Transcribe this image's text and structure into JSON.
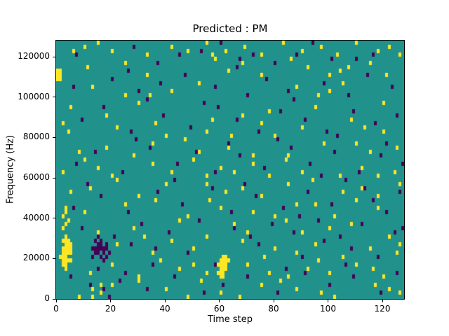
{
  "figure": {
    "title": "Predicted : PM",
    "xlabel": "Time step",
    "ylabel": "Frequency (Hz)"
  },
  "chart_data": {
    "type": "heatmap",
    "title": "Predicted : PM",
    "xlabel": "Time step",
    "ylabel": "Frequency (Hz)",
    "x_range": [
      0,
      128
    ],
    "y_range": [
      0,
      128000
    ],
    "x_ticks": [
      0,
      20,
      40,
      60,
      80,
      100,
      120
    ],
    "y_ticks": [
      0,
      20000,
      40000,
      60000,
      80000,
      100000,
      120000
    ],
    "grid": false,
    "legend": "none",
    "cell_size": {
      "time": 1,
      "freq_hz": 2000
    },
    "colors": {
      "background_mid": "#21918c",
      "high": "#fde725",
      "low": "#440154"
    },
    "note": "cells are [time_step, freq_bin]; freq_hz = freq_bin * 2000; high = yellow cells, low = dark purple cells, all other cells are mid teal",
    "cells_high": [
      [
        1,
        10
      ],
      [
        2,
        8
      ],
      [
        2,
        9
      ],
      [
        2,
        10
      ],
      [
        2,
        11
      ],
      [
        2,
        12
      ],
      [
        2,
        14
      ],
      [
        3,
        8
      ],
      [
        3,
        9
      ],
      [
        3,
        10
      ],
      [
        3,
        11
      ],
      [
        3,
        12
      ],
      [
        3,
        13
      ],
      [
        3,
        14
      ],
      [
        3,
        15
      ],
      [
        4,
        9
      ],
      [
        4,
        11
      ],
      [
        4,
        12
      ],
      [
        4,
        13
      ],
      [
        4,
        14
      ],
      [
        5,
        9
      ],
      [
        5,
        11
      ],
      [
        5,
        12
      ],
      [
        5,
        13
      ],
      [
        2,
        17
      ],
      [
        3,
        18
      ],
      [
        2,
        20
      ],
      [
        4,
        19
      ],
      [
        3,
        21
      ],
      [
        0,
        54
      ],
      [
        0,
        55
      ],
      [
        0,
        56
      ],
      [
        1,
        54
      ],
      [
        1,
        55
      ],
      [
        1,
        56
      ],
      [
        59,
        6
      ],
      [
        59,
        8
      ],
      [
        60,
        5
      ],
      [
        60,
        6
      ],
      [
        60,
        7
      ],
      [
        60,
        8
      ],
      [
        60,
        9
      ],
      [
        61,
        5
      ],
      [
        61,
        6
      ],
      [
        61,
        7
      ],
      [
        61,
        8
      ],
      [
        61,
        9
      ],
      [
        61,
        10
      ],
      [
        62,
        7
      ],
      [
        62,
        8
      ],
      [
        62,
        9
      ],
      [
        62,
        10
      ],
      [
        63,
        9
      ],
      [
        6,
        61
      ],
      [
        10,
        62
      ],
      [
        15,
        63
      ],
      [
        20,
        61
      ],
      [
        33,
        60
      ],
      [
        42,
        62
      ],
      [
        48,
        61
      ],
      [
        55,
        63
      ],
      [
        57,
        60
      ],
      [
        62,
        61
      ],
      [
        69,
        62
      ],
      [
        75,
        60
      ],
      [
        83,
        63
      ],
      [
        90,
        61
      ],
      [
        97,
        62
      ],
      [
        103,
        60
      ],
      [
        110,
        63
      ],
      [
        118,
        61
      ],
      [
        122,
        62
      ],
      [
        126,
        60
      ],
      [
        11,
        57
      ],
      [
        25,
        58
      ],
      [
        33,
        55
      ],
      [
        58,
        59
      ],
      [
        63,
        56
      ],
      [
        68,
        58
      ],
      [
        75,
        55
      ],
      [
        86,
        59
      ],
      [
        92,
        57
      ],
      [
        100,
        55
      ],
      [
        104,
        56
      ],
      [
        107,
        57
      ],
      [
        115,
        58
      ],
      [
        121,
        55
      ],
      [
        13,
        52
      ],
      [
        25,
        50
      ],
      [
        34,
        50
      ],
      [
        42,
        51
      ],
      [
        52,
        53
      ],
      [
        88,
        52
      ],
      [
        96,
        50
      ],
      [
        100,
        51
      ],
      [
        105,
        53
      ],
      [
        5,
        47
      ],
      [
        18,
        45
      ],
      [
        30,
        48
      ],
      [
        57,
        44
      ],
      [
        68,
        45
      ],
      [
        78,
        46
      ],
      [
        95,
        47
      ],
      [
        108,
        44
      ],
      [
        120,
        48
      ],
      [
        2,
        43
      ],
      [
        4,
        41
      ],
      [
        22,
        42
      ],
      [
        36,
        43
      ],
      [
        40,
        40
      ],
      [
        55,
        41
      ],
      [
        64,
        40
      ],
      [
        75,
        43
      ],
      [
        80,
        40
      ],
      [
        90,
        42
      ],
      [
        113,
        42
      ],
      [
        120,
        41
      ],
      [
        8,
        36
      ],
      [
        18,
        37
      ],
      [
        28,
        35
      ],
      [
        35,
        38
      ],
      [
        47,
        39
      ],
      [
        52,
        36
      ],
      [
        63,
        37
      ],
      [
        72,
        35
      ],
      [
        85,
        35
      ],
      [
        98,
        38
      ],
      [
        110,
        38
      ],
      [
        115,
        36
      ],
      [
        125,
        37
      ],
      [
        2,
        31
      ],
      [
        10,
        34
      ],
      [
        15,
        32
      ],
      [
        20,
        30
      ],
      [
        35,
        33
      ],
      [
        42,
        31
      ],
      [
        50,
        34
      ],
      [
        55,
        30
      ],
      [
        60,
        32
      ],
      [
        65,
        31
      ],
      [
        72,
        33
      ],
      [
        78,
        30
      ],
      [
        84,
        34
      ],
      [
        90,
        31
      ],
      [
        104,
        30
      ],
      [
        112,
        32
      ],
      [
        118,
        30
      ],
      [
        124,
        31
      ],
      [
        5,
        26
      ],
      [
        12,
        27
      ],
      [
        22,
        29
      ],
      [
        30,
        25
      ],
      [
        40,
        28
      ],
      [
        55,
        28
      ],
      [
        62,
        26
      ],
      [
        68,
        27
      ],
      [
        75,
        25
      ],
      [
        85,
        28
      ],
      [
        94,
        29
      ],
      [
        105,
        26
      ],
      [
        112,
        27
      ],
      [
        118,
        25
      ],
      [
        126,
        28
      ],
      [
        3,
        22
      ],
      [
        10,
        21
      ],
      [
        25,
        23
      ],
      [
        36,
        24
      ],
      [
        48,
        20
      ],
      [
        56,
        24
      ],
      [
        60,
        22
      ],
      [
        72,
        21
      ],
      [
        80,
        20
      ],
      [
        88,
        23
      ],
      [
        95,
        23
      ],
      [
        102,
        20
      ],
      [
        110,
        24
      ],
      [
        118,
        22
      ],
      [
        15,
        16
      ],
      [
        28,
        17
      ],
      [
        32,
        15
      ],
      [
        45,
        19
      ],
      [
        55,
        15
      ],
      [
        65,
        18
      ],
      [
        70,
        16
      ],
      [
        84,
        19
      ],
      [
        90,
        16
      ],
      [
        100,
        17
      ],
      [
        108,
        18
      ],
      [
        122,
        15
      ],
      [
        18,
        12
      ],
      [
        22,
        13
      ],
      [
        35,
        11
      ],
      [
        42,
        14
      ],
      [
        50,
        12
      ],
      [
        68,
        14
      ],
      [
        76,
        10
      ],
      [
        80,
        12
      ],
      [
        88,
        11
      ],
      [
        95,
        13
      ],
      [
        105,
        10
      ],
      [
        115,
        12
      ],
      [
        125,
        11
      ],
      [
        126,
        13
      ],
      [
        3,
        7
      ],
      [
        12,
        6
      ],
      [
        20,
        8
      ],
      [
        30,
        5
      ],
      [
        38,
        9
      ],
      [
        45,
        7
      ],
      [
        50,
        8
      ],
      [
        55,
        6
      ],
      [
        70,
        8
      ],
      [
        78,
        6
      ],
      [
        85,
        5
      ],
      [
        92,
        7
      ],
      [
        96,
        9
      ],
      [
        100,
        6
      ],
      [
        110,
        8
      ],
      [
        116,
        7
      ],
      [
        120,
        5
      ],
      [
        8,
        0
      ],
      [
        13,
        0
      ],
      [
        13,
        2
      ],
      [
        16,
        1
      ],
      [
        16,
        3
      ],
      [
        20,
        3
      ],
      [
        30,
        4
      ],
      [
        40,
        2
      ],
      [
        48,
        0
      ],
      [
        53,
        4
      ],
      [
        60,
        1
      ],
      [
        67,
        0
      ],
      [
        75,
        3
      ],
      [
        82,
        4
      ],
      [
        88,
        2
      ],
      [
        97,
        1
      ],
      [
        102,
        0
      ],
      [
        117,
        3
      ],
      [
        122,
        2
      ],
      [
        126,
        1
      ]
    ],
    "cells_low": [
      [
        13,
        10
      ],
      [
        13,
        12
      ],
      [
        14,
        11
      ],
      [
        14,
        12
      ],
      [
        14,
        14
      ],
      [
        15,
        11
      ],
      [
        15,
        12
      ],
      [
        15,
        13
      ],
      [
        15,
        15
      ],
      [
        16,
        10
      ],
      [
        16,
        12
      ],
      [
        16,
        13
      ],
      [
        16,
        14
      ],
      [
        17,
        9
      ],
      [
        17,
        11
      ],
      [
        17,
        12
      ],
      [
        18,
        10
      ],
      [
        18,
        12
      ],
      [
        18,
        13
      ],
      [
        19,
        11
      ],
      [
        7,
        60
      ],
      [
        28,
        62
      ],
      [
        37,
        58
      ],
      [
        45,
        60
      ],
      [
        53,
        61
      ],
      [
        60,
        63
      ],
      [
        67,
        59
      ],
      [
        72,
        60
      ],
      [
        80,
        58
      ],
      [
        88,
        60
      ],
      [
        94,
        63
      ],
      [
        101,
        59
      ],
      [
        110,
        59
      ],
      [
        116,
        60
      ],
      [
        6,
        52
      ],
      [
        20,
        54
      ],
      [
        26,
        56
      ],
      [
        30,
        51
      ],
      [
        38,
        53
      ],
      [
        47,
        55
      ],
      [
        58,
        52
      ],
      [
        66,
        57
      ],
      [
        70,
        50
      ],
      [
        77,
        54
      ],
      [
        85,
        51
      ],
      [
        98,
        53
      ],
      [
        107,
        50
      ],
      [
        114,
        55
      ],
      [
        123,
        52
      ],
      [
        9,
        44
      ],
      [
        17,
        47
      ],
      [
        27,
        41
      ],
      [
        33,
        49
      ],
      [
        39,
        45
      ],
      [
        49,
        42
      ],
      [
        54,
        48
      ],
      [
        59,
        47
      ],
      [
        66,
        44
      ],
      [
        74,
        41
      ],
      [
        82,
        46
      ],
      [
        87,
        49
      ],
      [
        91,
        44
      ],
      [
        99,
        41
      ],
      [
        103,
        40
      ],
      [
        109,
        46
      ],
      [
        117,
        43
      ],
      [
        125,
        45
      ],
      [
        7,
        33
      ],
      [
        14,
        36
      ],
      [
        24,
        31
      ],
      [
        29,
        39
      ],
      [
        34,
        37
      ],
      [
        44,
        33
      ],
      [
        51,
        36
      ],
      [
        58,
        31
      ],
      [
        63,
        38
      ],
      [
        67,
        35
      ],
      [
        76,
        32
      ],
      [
        81,
        39
      ],
      [
        86,
        37
      ],
      [
        93,
        33
      ],
      [
        97,
        30
      ],
      [
        102,
        36
      ],
      [
        111,
        31
      ],
      [
        119,
        35
      ],
      [
        121,
        38
      ],
      [
        127,
        33
      ],
      [
        6,
        22
      ],
      [
        11,
        28
      ],
      [
        16,
        25
      ],
      [
        26,
        21
      ],
      [
        37,
        26
      ],
      [
        43,
        29
      ],
      [
        46,
        23
      ],
      [
        57,
        27
      ],
      [
        64,
        21
      ],
      [
        69,
        28
      ],
      [
        73,
        25
      ],
      [
        83,
        22
      ],
      [
        89,
        20
      ],
      [
        92,
        26
      ],
      [
        101,
        23
      ],
      [
        106,
        29
      ],
      [
        113,
        27
      ],
      [
        116,
        24
      ],
      [
        121,
        21
      ],
      [
        126,
        26
      ],
      [
        9,
        17
      ],
      [
        21,
        15
      ],
      [
        27,
        13
      ],
      [
        31,
        18
      ],
      [
        36,
        12
      ],
      [
        41,
        16
      ],
      [
        48,
        11
      ],
      [
        52,
        19
      ],
      [
        65,
        17
      ],
      [
        71,
        15
      ],
      [
        74,
        13
      ],
      [
        79,
        18
      ],
      [
        87,
        16
      ],
      [
        90,
        10
      ],
      [
        96,
        19
      ],
      [
        98,
        14
      ],
      [
        104,
        15
      ],
      [
        108,
        12
      ],
      [
        112,
        18
      ],
      [
        118,
        10
      ],
      [
        124,
        16
      ],
      [
        127,
        17
      ],
      [
        5,
        5
      ],
      [
        12,
        3
      ],
      [
        15,
        7
      ],
      [
        17,
        2
      ],
      [
        19,
        0
      ],
      [
        23,
        4
      ],
      [
        25,
        6
      ],
      [
        33,
        2
      ],
      [
        35,
        8
      ],
      [
        43,
        5
      ],
      [
        54,
        1
      ],
      [
        58,
        8
      ],
      [
        61,
        3
      ],
      [
        70,
        5
      ],
      [
        81,
        1
      ],
      [
        84,
        7
      ],
      [
        91,
        6
      ],
      [
        100,
        3
      ],
      [
        106,
        8
      ],
      [
        109,
        5
      ],
      [
        119,
        1
      ],
      [
        125,
        6
      ]
    ]
  }
}
